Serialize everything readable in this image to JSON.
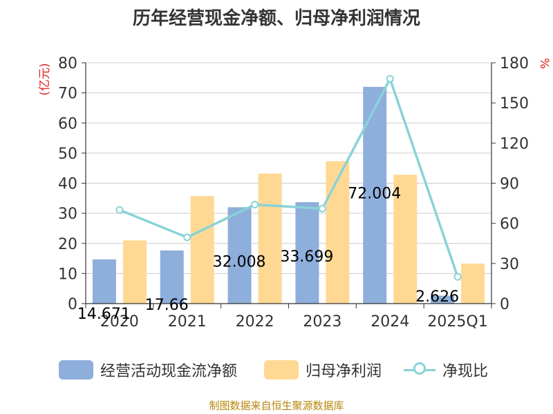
{
  "title": "历年经营现金净额、归母净利润情况",
  "source": "制图数据来自恒生聚源数据库",
  "colors": {
    "bar_cash": "#8eaedb",
    "bar_profit": "#ffd894",
    "line_ratio": "#88d3d7",
    "axis_unit": "#e02020",
    "grid": "#cccccc",
    "text": "#333333"
  },
  "legend": {
    "cash": "经营活动现金流净额",
    "profit": "归母净利润",
    "ratio": "净现比"
  },
  "chart_data": {
    "type": "bar+line",
    "categories": [
      "2020",
      "2021",
      "2022",
      "2023",
      "2024",
      "2025Q1"
    ],
    "series": [
      {
        "name": "经营活动现金流净额",
        "type": "bar",
        "axis": "left",
        "values": [
          14.671,
          17.66,
          32.008,
          33.699,
          72.004,
          2.626
        ],
        "labels": [
          "14.671",
          "17.66",
          "32.008",
          "33.699",
          "72.004",
          "2.626"
        ]
      },
      {
        "name": "归母净利润",
        "type": "bar",
        "axis": "left",
        "values": [
          21,
          35.7,
          43.2,
          47.3,
          42.8,
          13.3
        ]
      },
      {
        "name": "净现比",
        "type": "line",
        "axis": "right",
        "values": [
          70,
          49.5,
          74,
          71,
          168,
          20
        ]
      }
    ],
    "left_axis": {
      "unit": "(亿元)",
      "min": 0,
      "max": 80,
      "ticks": [
        0,
        10,
        20,
        30,
        40,
        50,
        60,
        70,
        80
      ]
    },
    "right_axis": {
      "unit": "%",
      "min": 0,
      "max": 180,
      "ticks": [
        0,
        30,
        60,
        90,
        120,
        150,
        180
      ]
    }
  }
}
